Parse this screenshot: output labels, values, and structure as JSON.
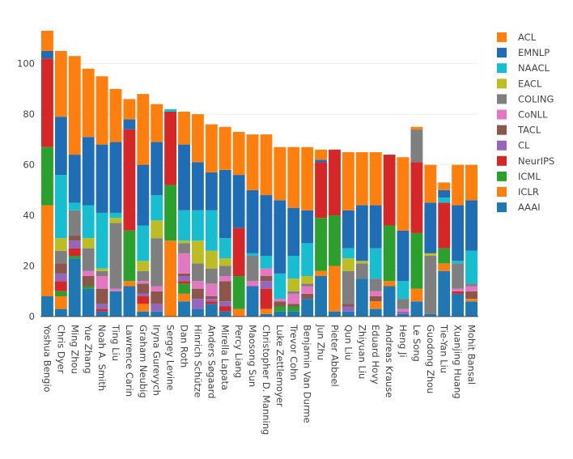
{
  "chart_data": {
    "type": "bar",
    "stacked": true,
    "title": "",
    "xlabel": "",
    "ylabel": "",
    "ylim": [
      0,
      113
    ],
    "yticks": [
      0,
      20,
      40,
      60,
      80,
      100
    ],
    "legend_position": "right",
    "categories": [
      "Yoshua Bengio",
      "Chris Dyer",
      "Ming Zhou",
      "Yue Zhang",
      "Noah A. Smith",
      "Ting Liu",
      "Lawrence Carin",
      "Graham Neubig",
      "Iryna Gurevych",
      "Sergey Levine",
      "Dan Roth",
      "Hinrich Schütze",
      "Anders Søgaard",
      "Mirella Lapata",
      "Percy Liang",
      "Maosong Sun",
      "Christopher D. Manning",
      "Luke Zettlemoyer",
      "Trevor Cohn",
      "Benjamin Van Durme",
      "Jun Zhu",
      "Pieter Abbeel",
      "Qun Liu",
      "Zhiyuan Liu",
      "Eduard Hovy",
      "Andreas Krause",
      "Heng Ji",
      "Le Song",
      "Guodong Zhou",
      "Tie-Yan Liu",
      "Xuanjing Huang",
      "Mohit Bansal"
    ],
    "series": [
      {
        "name": "AAAI",
        "color": "#1f77b4",
        "values": [
          8,
          3,
          23,
          11,
          2,
          10,
          12,
          2,
          2,
          0,
          6,
          3,
          5,
          2,
          0,
          12,
          1,
          2,
          2,
          7,
          16,
          2,
          2,
          15,
          3,
          12,
          1,
          6,
          1,
          18,
          9,
          6
        ]
      },
      {
        "name": "ICLR",
        "color": "#ff7f0e",
        "values": [
          36,
          5,
          0,
          0,
          0,
          0,
          2,
          3,
          0,
          30,
          3,
          0,
          0,
          0,
          3,
          0,
          2,
          0,
          0,
          0,
          2,
          18,
          0,
          0,
          3,
          2,
          0,
          5,
          0,
          3,
          0,
          1
        ]
      },
      {
        "name": "ICML",
        "color": "#2ca02c",
        "values": [
          23,
          2,
          1,
          1,
          0,
          0,
          20,
          0,
          0,
          22,
          4,
          0,
          0,
          0,
          13,
          0,
          0,
          2,
          2,
          0,
          21,
          20,
          0,
          0,
          0,
          22,
          0,
          22,
          0,
          6,
          0,
          0
        ]
      },
      {
        "name": "NeurIPS",
        "color": "#d62728",
        "values": [
          35,
          4,
          3,
          0,
          1,
          0,
          40,
          3,
          0,
          29,
          1,
          0,
          1,
          2,
          19,
          0,
          8,
          0,
          0,
          0,
          22,
          26,
          0,
          0,
          0,
          28,
          0,
          28,
          0,
          18,
          1,
          0
        ]
      },
      {
        "name": "CL",
        "color": "#9467bd",
        "values": [
          0,
          3,
          3,
          0,
          2,
          0,
          0,
          1,
          3,
          0,
          2,
          4,
          1,
          2,
          0,
          0,
          3,
          0,
          0,
          0,
          0,
          0,
          2,
          0,
          0,
          0,
          1,
          0,
          0,
          0,
          0,
          0
        ]
      },
      {
        "name": "TACL",
        "color": "#8c564b",
        "values": [
          0,
          4,
          2,
          4,
          6,
          0,
          0,
          4,
          5,
          0,
          1,
          4,
          1,
          8,
          0,
          0,
          2,
          2,
          1,
          2,
          0,
          0,
          1,
          0,
          2,
          0,
          0,
          0,
          0,
          0,
          0,
          3
        ]
      },
      {
        "name": "CoNLL",
        "color": "#e377c2",
        "values": [
          0,
          0,
          0,
          2,
          5,
          1,
          0,
          1,
          2,
          0,
          8,
          3,
          5,
          2,
          0,
          2,
          3,
          1,
          4,
          3,
          0,
          0,
          0,
          0,
          2,
          0,
          1,
          0,
          0,
          0,
          1,
          2
        ]
      },
      {
        "name": "COLING",
        "color": "#7f7f7f",
        "values": [
          0,
          5,
          10,
          9,
          2,
          26,
          0,
          4,
          19,
          0,
          4,
          7,
          6,
          4,
          0,
          10,
          0,
          0,
          1,
          1,
          0,
          0,
          13,
          6,
          5,
          0,
          4,
          13,
          23,
          0,
          10,
          1
        ]
      },
      {
        "name": "EACL",
        "color": "#bcbd22",
        "values": [
          0,
          5,
          0,
          4,
          1,
          2,
          0,
          4,
          7,
          0,
          1,
          9,
          7,
          3,
          0,
          0,
          0,
          0,
          5,
          3,
          0,
          0,
          5,
          1,
          0,
          0,
          0,
          0,
          1,
          0,
          0,
          0
        ]
      },
      {
        "name": "NAACL",
        "color": "#17becf",
        "values": [
          0,
          25,
          3,
          13,
          22,
          2,
          0,
          14,
          10,
          1,
          12,
          12,
          16,
          8,
          0,
          1,
          5,
          10,
          9,
          13,
          0,
          0,
          4,
          0,
          12,
          0,
          7,
          0,
          0,
          2,
          1,
          13
        ]
      },
      {
        "name": "EMNLP",
        "color": "#1f6db4",
        "values": [
          3,
          23,
          19,
          27,
          27,
          28,
          4,
          24,
          21,
          0,
          26,
          19,
          15,
          27,
          21,
          25,
          24,
          29,
          19,
          13,
          1,
          0,
          15,
          22,
          17,
          0,
          20,
          0,
          20,
          3,
          22,
          20
        ]
      },
      {
        "name": "ACL",
        "color": "#ff7f0e",
        "values": [
          8,
          26,
          39,
          27,
          27,
          21,
          8,
          28,
          15,
          0,
          13,
          19,
          19,
          17,
          17,
          22,
          24,
          21,
          24,
          25,
          4,
          0,
          23,
          21,
          21,
          0,
          29,
          1,
          15,
          3,
          16,
          14
        ]
      }
    ]
  }
}
